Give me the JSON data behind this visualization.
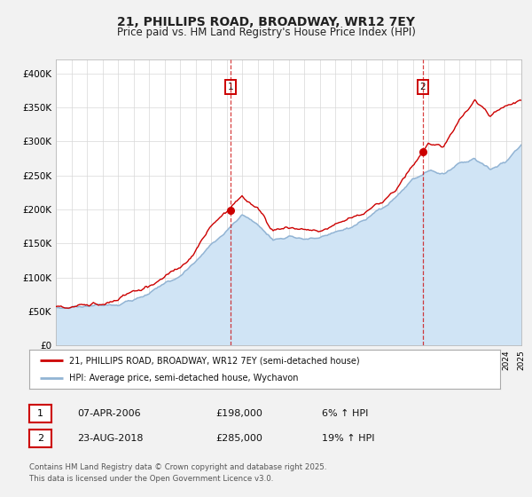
{
  "title": "21, PHILLIPS ROAD, BROADWAY, WR12 7EY",
  "subtitle": "Price paid vs. HM Land Registry's House Price Index (HPI)",
  "title_fontsize": 10,
  "subtitle_fontsize": 8.5,
  "bg_color": "#f2f2f2",
  "plot_bg_color": "#ffffff",
  "year_start": 1995,
  "year_end": 2025,
  "ylim": [
    0,
    420000
  ],
  "yticks": [
    0,
    50000,
    100000,
    150000,
    200000,
    250000,
    300000,
    350000,
    400000
  ],
  "hpi_color": "#92b4d4",
  "hpi_fill_color": "#d0e4f5",
  "price_color": "#cc0000",
  "marker1_year": 2006.27,
  "marker1_price": 198000,
  "marker2_year": 2018.65,
  "marker2_price": 285000,
  "legend_label1": "21, PHILLIPS ROAD, BROADWAY, WR12 7EY (semi-detached house)",
  "legend_label2": "HPI: Average price, semi-detached house, Wychavon",
  "annotation1_label": "1",
  "annotation1_date": "07-APR-2006",
  "annotation1_price": "£198,000",
  "annotation1_hpi": "6% ↑ HPI",
  "annotation2_label": "2",
  "annotation2_date": "23-AUG-2018",
  "annotation2_price": "£285,000",
  "annotation2_hpi": "19% ↑ HPI",
  "footer": "Contains HM Land Registry data © Crown copyright and database right 2025.\nThis data is licensed under the Open Government Licence v3.0."
}
